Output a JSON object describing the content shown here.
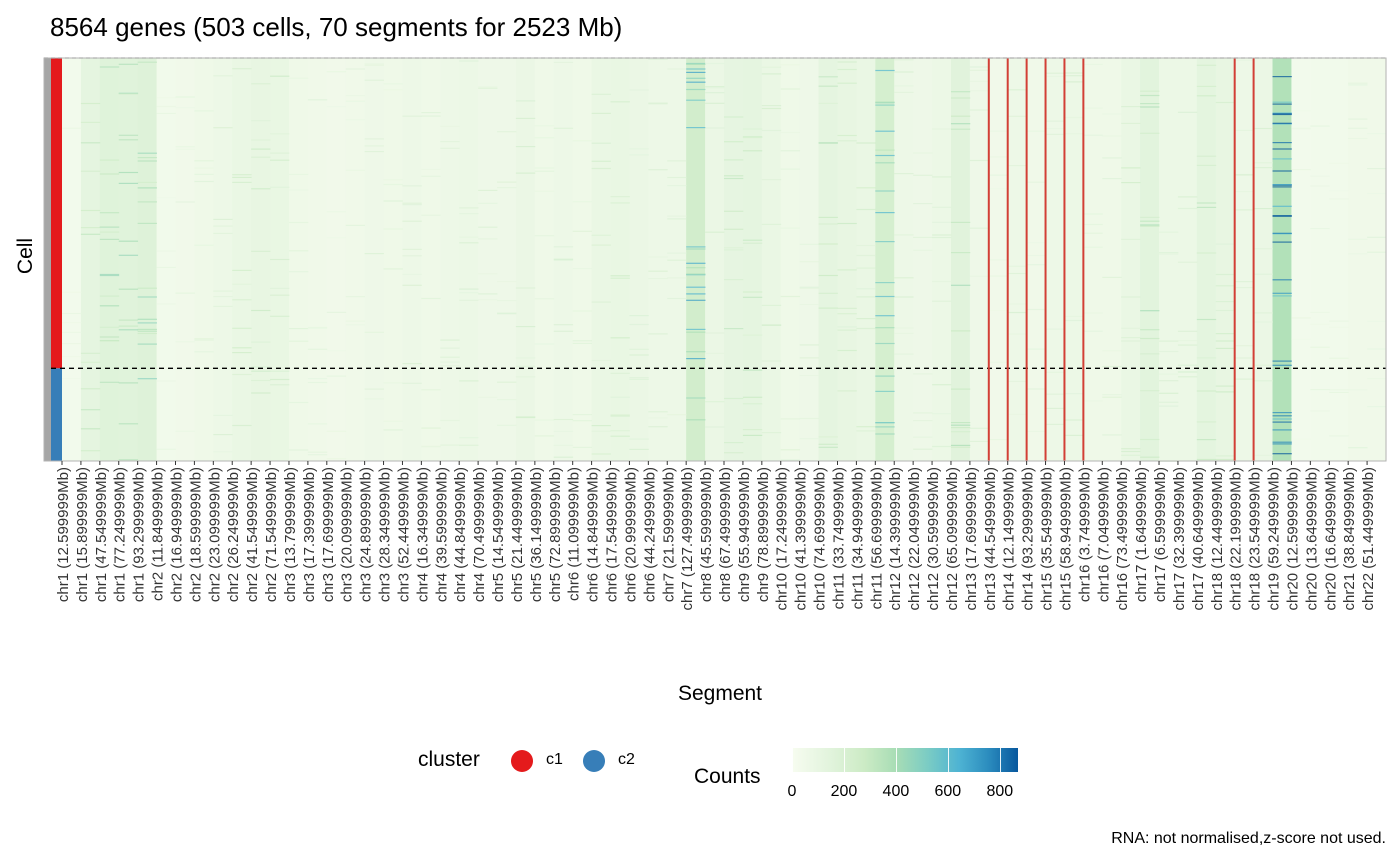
{
  "chart_data": {
    "type": "heatmap",
    "title": "8564 genes (503 cells, 70 segments for 2523 Mb)",
    "xlabel": "Segment",
    "ylabel": "Cell",
    "x_ticks": [
      "chr1 (12.599999Mb)",
      "chr1 (15.899999Mb)",
      "chr1 (47.549999Mb)",
      "chr1 (77.249999Mb)",
      "chr1 (93.299999Mb)",
      "chr2 (11.849999Mb)",
      "chr2 (16.949999Mb)",
      "chr2 (18.599999Mb)",
      "chr2 (23.099999Mb)",
      "chr2 (26.249999Mb)",
      "chr2 (41.549999Mb)",
      "chr2 (71.549999Mb)",
      "chr3 (13.799999Mb)",
      "chr3 (17.399999Mb)",
      "chr3 (17.699999Mb)",
      "chr3 (20.099999Mb)",
      "chr3 (24.899999Mb)",
      "chr3 (28.349999Mb)",
      "chr3 (52.449999Mb)",
      "chr4 (16.349999Mb)",
      "chr4 (39.599999Mb)",
      "chr4 (44.849999Mb)",
      "chr4 (70.499999Mb)",
      "chr5 (14.549999Mb)",
      "chr5 (21.449999Mb)",
      "chr5 (36.149999Mb)",
      "chr5 (72.899999Mb)",
      "chr6 (11.099999Mb)",
      "chr6 (14.849999Mb)",
      "chr6 (17.549999Mb)",
      "chr6 (20.999999Mb)",
      "chr6 (44.249999Mb)",
      "chr7 (21.599999Mb)",
      "chr7 (127.499999Mb)",
      "chr8 (45.599999Mb)",
      "chr8 (67.499999Mb)",
      "chr9 (55.949999Mb)",
      "chr9 (78.899999Mb)",
      "chr10 (17.249999Mb)",
      "chr10 (41.399999Mb)",
      "chr10 (74.699999Mb)",
      "chr11 (33.749999Mb)",
      "chr11 (34.949999Mb)",
      "chr11 (56.699999Mb)",
      "chr12 (14.399999Mb)",
      "chr12 (22.049999Mb)",
      "chr12 (30.599999Mb)",
      "chr12 (65.099999Mb)",
      "chr13 (17.699999Mb)",
      "chr13 (44.549999Mb)",
      "chr14 (12.149999Mb)",
      "chr14 (93.299999Mb)",
      "chr15 (35.549999Mb)",
      "chr15 (58.949999Mb)",
      "chr16 (3.749999Mb)",
      "chr16 (7.049999Mb)",
      "chr16 (73.499999Mb)",
      "chr17 (1.649999Mb)",
      "chr17 (6.599999Mb)",
      "chr17 (32.399999Mb)",
      "chr17 (40.649999Mb)",
      "chr18 (12.449999Mb)",
      "chr18 (22.199999Mb)",
      "chr18 (23.549999Mb)",
      "chr19 (59.249999Mb)",
      "chr20 (12.599999Mb)",
      "chr20 (13.649999Mb)",
      "chr20 (16.649999Mb)",
      "chr21 (38.849999Mb)",
      "chr22 (51.449999Mb)"
    ],
    "segment_mean_counts": [
      25,
      95,
      130,
      125,
      135,
      30,
      35,
      45,
      55,
      70,
      80,
      75,
      45,
      40,
      35,
      40,
      50,
      45,
      55,
      45,
      55,
      60,
      50,
      50,
      65,
      45,
      55,
      45,
      70,
      75,
      65,
      55,
      55,
      210,
      65,
      90,
      95,
      70,
      45,
      50,
      95,
      80,
      70,
      190,
      55,
      50,
      60,
      120,
      50,
      35,
      55,
      40,
      55,
      60,
      45,
      45,
      70,
      115,
      60,
      60,
      100,
      80,
      55,
      65,
      340,
      25,
      30,
      30,
      40,
      40
    ],
    "marked_segment_boundaries": [
      "chr13 (44.549999Mb)",
      "chr14 (12.149999Mb)",
      "chr14 (93.299999Mb)",
      "chr15 (35.549999Mb)",
      "chr15 (58.949999Mb)",
      "chr16 (3.749999Mb)",
      "chr18 (22.199999Mb)",
      "chr18 (23.549999Mb)"
    ],
    "cell_clusters": [
      {
        "name": "c1",
        "color": "#e41a1c",
        "fraction": 0.77
      },
      {
        "name": "c2",
        "color": "#377eb8",
        "fraction": 0.23
      }
    ],
    "color_scale": {
      "name": "Counts",
      "min": 0,
      "max": 870,
      "ticks": [
        0,
        200,
        400,
        600,
        800
      ],
      "colors": [
        "#f7fcf0",
        "#e0f3db",
        "#ccebc5",
        "#a8ddb5",
        "#7bccc4",
        "#4eb3d3",
        "#2b8cbe",
        "#08589e"
      ]
    },
    "legend": {
      "cluster_title": "cluster",
      "cluster_labels": [
        "c1",
        "c2"
      ],
      "counts_title": "Counts",
      "counts_tick_labels": [
        "0",
        "200",
        "400",
        "600",
        "800"
      ],
      "placement": "bottom"
    },
    "footnote": "RNA: not normalised,z-score not used."
  }
}
